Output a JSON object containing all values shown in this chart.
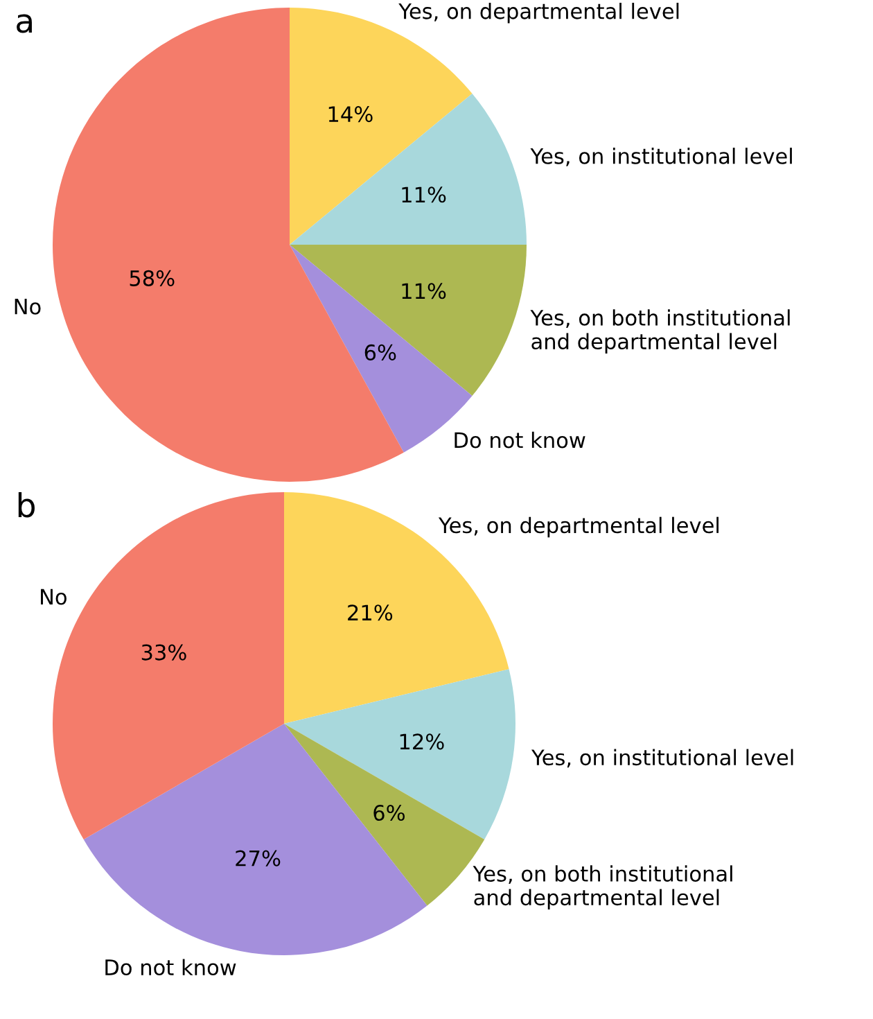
{
  "chart_data": [
    {
      "type": "pie",
      "title": "a",
      "categories": [
        "Yes, on departmental level",
        "Yes, on institutional level",
        "Yes, on both institutional\nand departmental level",
        "Do not know",
        "No"
      ],
      "values": [
        14,
        11,
        11,
        6,
        58
      ],
      "value_labels": [
        "14%",
        "11%",
        "11%",
        "6%",
        "58%"
      ],
      "colors": [
        "#fdd55a",
        "#a8d8dc",
        "#adb852",
        "#a48fdc",
        "#f47c6b"
      ]
    },
    {
      "type": "pie",
      "title": "b",
      "categories": [
        "Yes, on departmental level",
        "Yes, on institutional level",
        "Yes, on both institutional\nand departmental level",
        "Do not know",
        "No"
      ],
      "values": [
        21,
        12,
        6,
        27,
        33
      ],
      "value_labels": [
        "21%",
        "12%",
        "6%",
        "27%",
        "33%"
      ],
      "colors": [
        "#fdd55a",
        "#a8d8dc",
        "#adb852",
        "#a48fdc",
        "#f47c6b"
      ]
    }
  ]
}
